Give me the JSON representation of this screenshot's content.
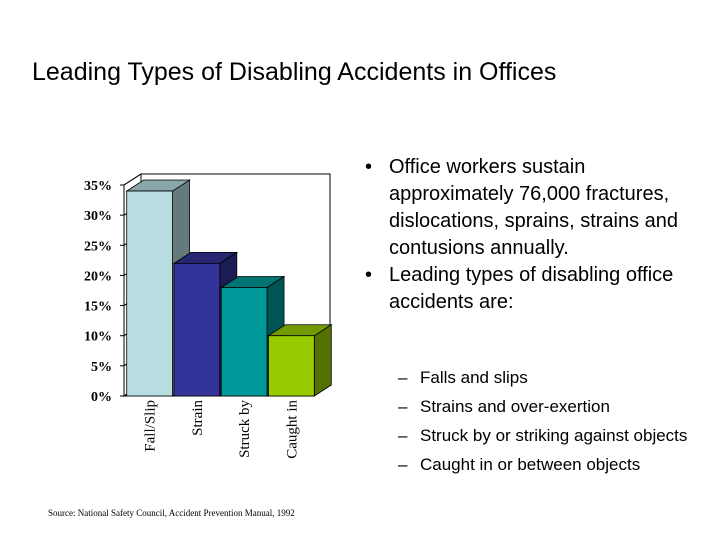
{
  "title": "Leading Types of Disabling Accidents in Offices",
  "bullets": [
    "Office workers sustain approximately 76,000 fractures, dislocations, sprains, strains and contusions annually.",
    "Leading types of disabling office accidents are:"
  ],
  "sub_bullets": [
    "Falls and slips",
    "Strains and over-exertion",
    "Struck by or striking against objects",
    "Caught in or between objects"
  ],
  "source": "Source: National Safety Council, Accident Prevention Manual, 1992",
  "chart_data": {
    "type": "bar",
    "title": "",
    "xlabel": "",
    "ylabel": "",
    "categories": [
      "Fall/Slip",
      "Strain",
      "Struck by",
      "Caught in"
    ],
    "values": [
      34,
      22,
      18,
      10
    ],
    "ylim": [
      0,
      35
    ],
    "yticks": [
      0,
      5,
      10,
      15,
      20,
      25,
      30,
      35
    ],
    "ytick_labels": [
      "0%",
      "5%",
      "10%",
      "15%",
      "20%",
      "25%",
      "30%",
      "35%"
    ],
    "grid": false,
    "legend": "none",
    "style": "3d",
    "colors": [
      "#b7dde3",
      "#333399",
      "#009999",
      "#99cc00"
    ]
  }
}
